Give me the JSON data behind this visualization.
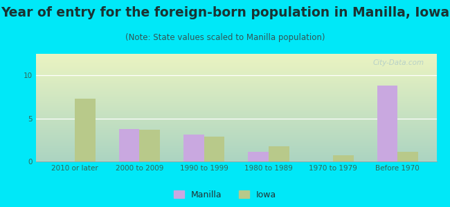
{
  "title": "Year of entry for the foreign-born population in Manilla, Iowa",
  "subtitle": "(Note: State values scaled to Manilla population)",
  "categories": [
    "2010 or later",
    "2000 to 2009",
    "1990 to 1999",
    "1980 to 1989",
    "1970 to 1979",
    "Before 1970"
  ],
  "manilla_values": [
    0,
    3.8,
    3.1,
    1.1,
    0,
    8.8
  ],
  "iowa_values": [
    7.3,
    3.7,
    2.9,
    1.8,
    0.7,
    1.1
  ],
  "manilla_color": "#c9a8e0",
  "iowa_color": "#b8c98a",
  "background_outer": "#00e8f8",
  "ylim": [
    0,
    12.5
  ],
  "yticks": [
    0,
    5,
    10
  ],
  "bar_width": 0.32,
  "title_fontsize": 13.5,
  "subtitle_fontsize": 8.5,
  "tick_fontsize": 7.5,
  "legend_fontsize": 9,
  "watermark_text": "City-Data.com"
}
